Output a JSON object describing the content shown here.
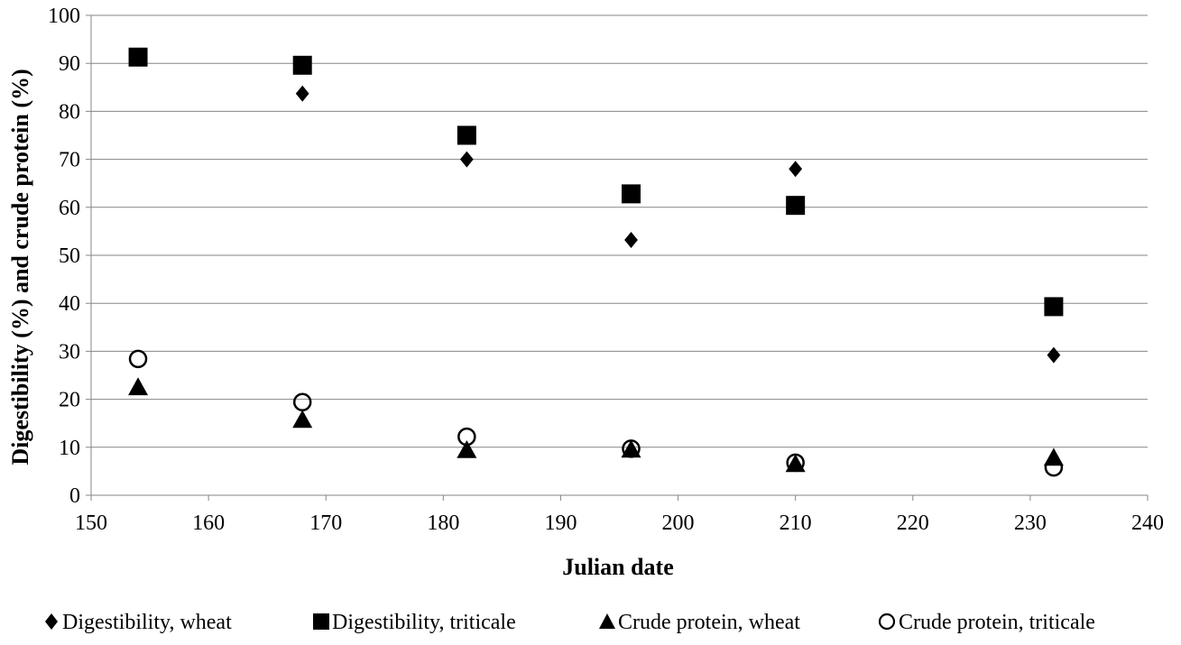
{
  "chart_data": {
    "type": "scatter",
    "title": "",
    "xlabel": "Julian date",
    "ylabel": "Digestibility (%) and  crude protein (%)",
    "xlim": [
      150,
      240
    ],
    "ylim": [
      0,
      100
    ],
    "xticks": [
      150,
      160,
      170,
      180,
      190,
      200,
      210,
      220,
      230,
      240
    ],
    "yticks": [
      0,
      10,
      20,
      30,
      40,
      50,
      60,
      70,
      80,
      90,
      100
    ],
    "grid": "horizontal",
    "legend": "bottom",
    "series": [
      {
        "name": "Digestibility, wheat",
        "marker": "diamond",
        "color": "#000000",
        "points": [
          [
            154,
            91
          ],
          [
            168,
            83.7
          ],
          [
            182,
            70
          ],
          [
            196,
            53.2
          ],
          [
            210,
            68
          ],
          [
            232,
            29.2
          ]
        ]
      },
      {
        "name": "Digestibility, triticale",
        "marker": "square",
        "color": "#000000",
        "points": [
          [
            154,
            91.3
          ],
          [
            168,
            89.6
          ],
          [
            182,
            75
          ],
          [
            196,
            62.8
          ],
          [
            210,
            60.4
          ],
          [
            232,
            39.3
          ]
        ]
      },
      {
        "name": "Crude protein, wheat",
        "marker": "triangle",
        "color": "#000000",
        "points": [
          [
            154,
            22.5
          ],
          [
            168,
            15.7
          ],
          [
            182,
            9.4
          ],
          [
            196,
            9.5
          ],
          [
            210,
            6.5
          ],
          [
            232,
            7.8
          ]
        ]
      },
      {
        "name": "Crude protein, triticale",
        "marker": "circle-open",
        "color": "#000000",
        "points": [
          [
            154,
            28.4
          ],
          [
            168,
            19.4
          ],
          [
            182,
            12.2
          ],
          [
            196,
            9.7
          ],
          [
            210,
            6.8
          ],
          [
            232,
            5.8
          ]
        ]
      }
    ]
  }
}
